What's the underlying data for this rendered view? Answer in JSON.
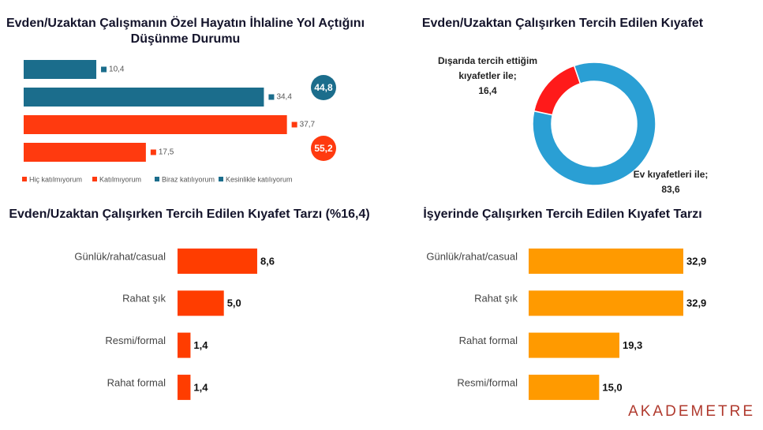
{
  "chart_data": [
    {
      "type": "bar",
      "orientation": "horizontal",
      "title": "Evden/Uzaktan Çalışmanın Özel Hayatın İhlaline Yol Açtığını Düşünme Durumu",
      "xlim": [
        0,
        40
      ],
      "series": [
        {
          "name": "Hiç katılmıyorum",
          "color": "#ff3a0f",
          "values": [
            17.5
          ],
          "value_labels": [
            "17,5"
          ]
        },
        {
          "name": "Katılmıyorum",
          "color": "#ff3a0f",
          "values": [
            37.7
          ],
          "value_labels": [
            "37,7"
          ]
        },
        {
          "name": "Biraz katılıyorum",
          "color": "#1b6d8c",
          "values": [
            34.4
          ],
          "value_labels": [
            "34,4"
          ]
        },
        {
          "name": "Kesinlikle katılıyorum",
          "color": "#1b6d8c",
          "values": [
            10.4
          ],
          "value_labels": [
            "10,4"
          ]
        }
      ],
      "totals": [
        {
          "value": 44.8,
          "label": "44,8",
          "color": "#1b6d8c"
        },
        {
          "value": 55.2,
          "label": "55,2",
          "color": "#ff3a0f"
        }
      ]
    },
    {
      "type": "pie",
      "donut": true,
      "title": "Evden/Uzaktan Çalışırken Tercih Edilen Kıyafet",
      "categories": [
        "Dışarıda tercih ettiğim kıyafetler ile;",
        "Ev kıyafetleri ile;"
      ],
      "values": [
        16.4,
        83.6
      ],
      "value_labels": [
        "16,4",
        "83,6"
      ],
      "colors": [
        "#ff1a1a",
        "#2a9fd4"
      ]
    },
    {
      "type": "bar",
      "orientation": "horizontal",
      "title": "Evden/Uzaktan Çalışırken Tercih Edilen Kıyafet Tarzı (%16,4)",
      "xlim": [
        0,
        10
      ],
      "categories": [
        "Günlük/rahat/casual",
        "Rahat şık",
        "Resmi/formal",
        "Rahat formal"
      ],
      "values": [
        8.6,
        5.0,
        1.4,
        1.4
      ],
      "value_labels": [
        "8,6",
        "5,0",
        "1,4",
        "1,4"
      ],
      "color": "#ff3d00"
    },
    {
      "type": "bar",
      "orientation": "horizontal",
      "title": "İşyerinde Çalışırken Tercih Edilen Kıyafet Tarzı",
      "xlim": [
        0,
        35
      ],
      "categories": [
        "Günlük/rahat/casual",
        "Rahat şık",
        "Rahat formal",
        "Resmi/formal"
      ],
      "values": [
        32.9,
        32.9,
        19.3,
        15.0
      ],
      "value_labels": [
        "32,9",
        "32,9",
        "19,3",
        "15,0"
      ],
      "color": "#ff9a00"
    }
  ],
  "brand": "AKADEMETRE"
}
